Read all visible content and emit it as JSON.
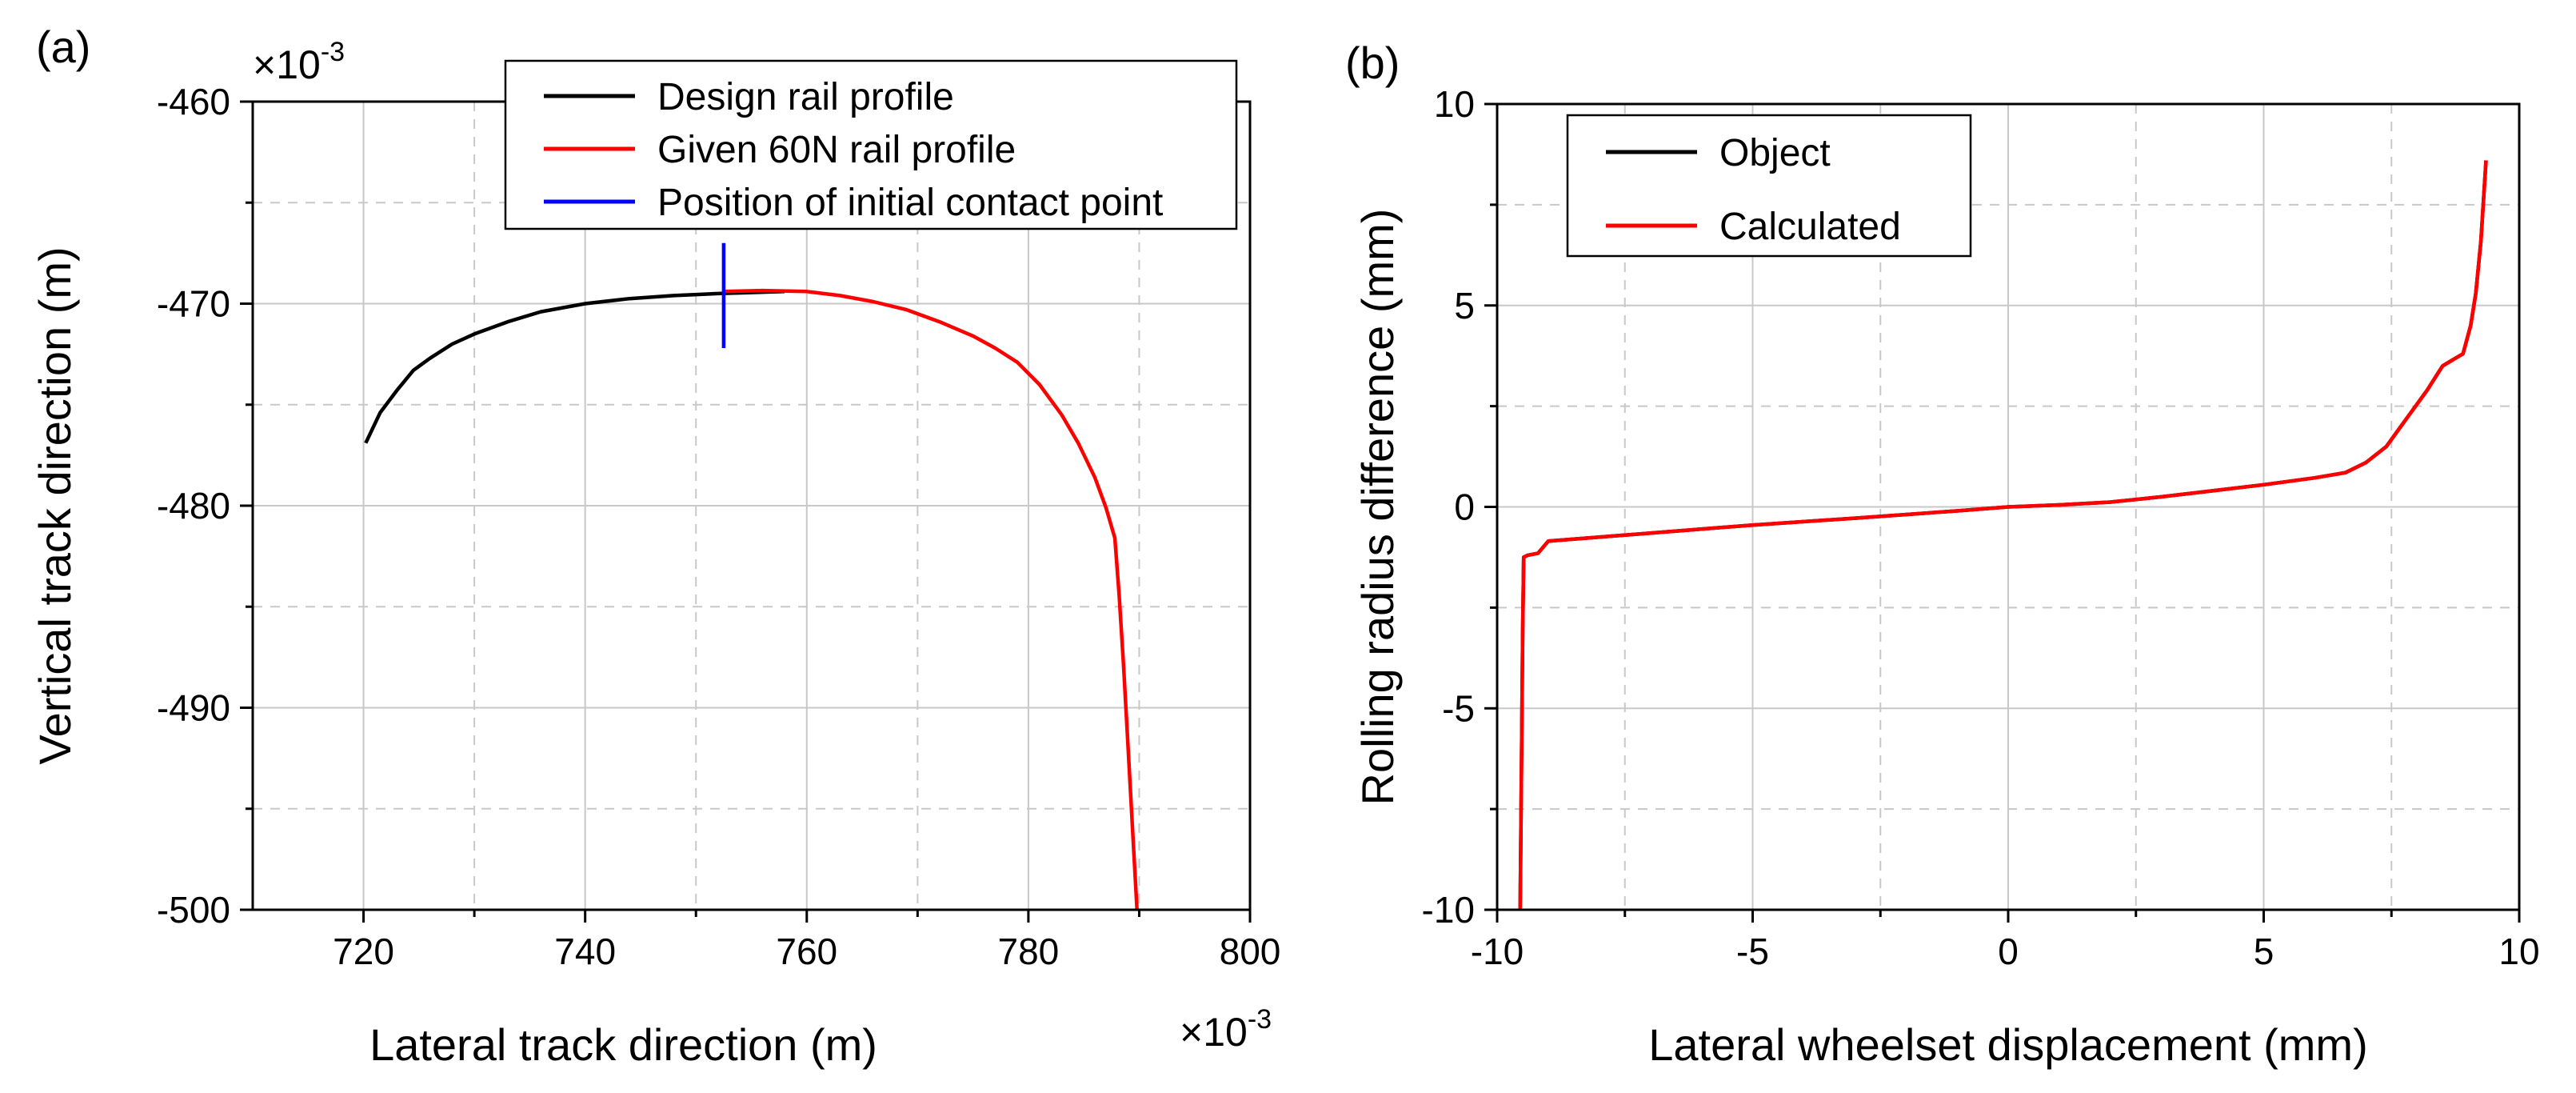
{
  "chart_data": [
    {
      "panel_label": "(a)",
      "type": "line",
      "xlabel": "Lateral track direction (m)",
      "ylabel": "Vertical track direction (m)",
      "x_multiplier": "×10",
      "x_multiplier_exp": "-3",
      "y_multiplier": "×10",
      "y_multiplier_exp": "-3",
      "xlim": [
        710,
        800
      ],
      "ylim": [
        -500,
        -460
      ],
      "xticks": [
        720,
        740,
        760,
        780,
        800
      ],
      "yticks": [
        -500,
        -490,
        -480,
        -470,
        -460
      ],
      "xtick_labels": [
        "720",
        "740",
        "760",
        "780",
        "800"
      ],
      "ytick_labels": [
        "-500",
        "-490",
        "-480",
        "-470",
        "-460"
      ],
      "grid": true,
      "legend_position": "top-right",
      "series": [
        {
          "name": "Design rail profile",
          "color": "#000000",
          "x": [
            720.2,
            721.5,
            723,
            724.5,
            726,
            728,
            730,
            733,
            736,
            740,
            744,
            748,
            752,
            755,
            758
          ],
          "y": [
            -476.9,
            -475.4,
            -474.3,
            -473.3,
            -472.7,
            -472.0,
            -471.5,
            -470.9,
            -470.4,
            -470.0,
            -469.75,
            -469.6,
            -469.5,
            -469.45,
            -469.4
          ]
        },
        {
          "name": "Given 60N rail profile",
          "color": "#ff0000",
          "x": [
            752.5,
            756,
            760,
            763,
            766,
            769,
            772,
            775,
            777,
            779,
            781,
            783,
            784.5,
            786,
            787,
            787.8,
            788.2,
            788.6,
            789,
            789.4,
            789.8
          ],
          "y": [
            -469.4,
            -469.35,
            -469.4,
            -469.6,
            -469.9,
            -470.3,
            -470.9,
            -471.6,
            -472.2,
            -472.9,
            -474.0,
            -475.5,
            -476.9,
            -478.6,
            -480.1,
            -481.6,
            -484.5,
            -488.0,
            -492.0,
            -496.0,
            -500.0
          ]
        },
        {
          "name": "Position of initial contact point",
          "color": "#0000ff",
          "x": [
            752.5,
            752.5
          ],
          "y": [
            -467.0,
            -472.2
          ]
        }
      ]
    },
    {
      "panel_label": "(b)",
      "type": "line",
      "xlabel": "Lateral wheelset displacement (mm)",
      "ylabel": "Rolling radius difference (mm)",
      "xlim": [
        -10,
        10
      ],
      "ylim": [
        -10,
        10
      ],
      "xticks": [
        -10,
        -5,
        0,
        5,
        10
      ],
      "yticks": [
        -10,
        -5,
        0,
        5,
        10
      ],
      "xtick_labels": [
        "-10",
        "-5",
        "0",
        "5",
        "10"
      ],
      "ytick_labels": [
        "-10",
        "-5",
        "0",
        "5",
        "10"
      ],
      "grid": true,
      "legend_position": "top-left",
      "series": [
        {
          "name": "Object",
          "color": "#000000",
          "x": [
            -9.55,
            -9.5,
            -9.48,
            -9.4,
            -9.2,
            -9.0,
            -8.5,
            -7.0,
            -5.0,
            -3.0,
            -1.0,
            0,
            1.0,
            2.0,
            3.0,
            4.0,
            5.0,
            6.0,
            6.6,
            7.0,
            7.4,
            7.8,
            8.2,
            8.5,
            8.7,
            8.9,
            9.05,
            9.15,
            9.25,
            9.35
          ],
          "y": [
            -10.0,
            -3.0,
            -1.25,
            -1.2,
            -1.15,
            -0.85,
            -0.8,
            -0.65,
            -0.45,
            -0.28,
            -0.1,
            0.0,
            0.05,
            0.12,
            0.25,
            0.4,
            0.55,
            0.72,
            0.85,
            1.1,
            1.5,
            2.2,
            2.9,
            3.5,
            3.65,
            3.8,
            4.5,
            5.3,
            6.6,
            8.6
          ]
        },
        {
          "name": "Calculated",
          "color": "#ff0000",
          "x": [
            -9.55,
            -9.5,
            -9.48,
            -9.4,
            -9.2,
            -9.0,
            -8.5,
            -7.0,
            -5.0,
            -3.0,
            -1.0,
            0,
            1.0,
            2.0,
            3.0,
            4.0,
            5.0,
            6.0,
            6.6,
            7.0,
            7.4,
            7.8,
            8.2,
            8.5,
            8.7,
            8.9,
            9.05,
            9.15,
            9.25,
            9.35
          ],
          "y": [
            -10.0,
            -3.0,
            -1.25,
            -1.2,
            -1.15,
            -0.85,
            -0.8,
            -0.65,
            -0.45,
            -0.28,
            -0.1,
            0.0,
            0.05,
            0.12,
            0.25,
            0.4,
            0.55,
            0.72,
            0.85,
            1.1,
            1.5,
            2.2,
            2.9,
            3.5,
            3.65,
            3.8,
            4.5,
            5.3,
            6.6,
            8.6
          ]
        }
      ]
    }
  ]
}
